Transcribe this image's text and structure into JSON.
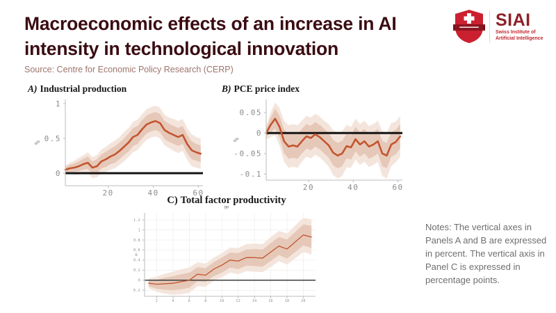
{
  "header": {
    "title": "Macroeconomic effects of an increase in AI intensity in technological innovation",
    "title_color": "#3a0c12",
    "source": "Source: Centre for Economic Policy Research (CERP)",
    "source_color": "#9e746c"
  },
  "logo": {
    "acronym": "SIAI",
    "subtitle_line1": "Swiss Institute of",
    "subtitle_line2": "Artificial Intelligence",
    "shield_color": "#cb2030",
    "banner_color": "#8c1420",
    "acronym_color": "#8e2127",
    "subtitle_color": "#c2272e"
  },
  "notes": {
    "text": "Notes: The vertical axes in Panels A and B are expressed in percent. The vertical axis in Panel C is expressed in percentage points.",
    "color": "#6e6e6e"
  },
  "colors": {
    "line": "#c2552f",
    "band_inner": "#e6c8b8",
    "band_outer": "#f4e5dc",
    "axis": "#bbbbbb",
    "tick_text": "#8c8c8c",
    "grid": "#edeae7"
  },
  "chart_data": [
    {
      "type": "line",
      "prefix": "A)",
      "name": "Industrial production",
      "ylabel": "%",
      "xlim": [
        1,
        62
      ],
      "ylim": [
        -0.18,
        1.06
      ],
      "xticks": [
        20,
        40,
        60
      ],
      "yticks": [
        1,
        0.5,
        0
      ],
      "zero_line": true,
      "x": [
        1,
        3,
        5,
        7,
        9,
        11,
        13,
        15,
        17,
        19,
        21,
        23,
        25,
        27,
        29,
        31,
        33,
        35,
        37,
        39,
        41,
        43,
        45,
        47,
        49,
        51,
        53,
        55,
        57,
        59,
        61
      ],
      "y": [
        0.05,
        0.07,
        0.08,
        0.1,
        0.13,
        0.15,
        0.08,
        0.1,
        0.17,
        0.2,
        0.24,
        0.27,
        0.32,
        0.38,
        0.44,
        0.52,
        0.55,
        0.63,
        0.7,
        0.73,
        0.75,
        0.72,
        0.62,
        0.58,
        0.55,
        0.52,
        0.55,
        0.42,
        0.33,
        0.3,
        0.28
      ],
      "band_inner_halfwidth": [
        0.04,
        0.05,
        0.06,
        0.07,
        0.08,
        0.09,
        0.09,
        0.1,
        0.1,
        0.11,
        0.11,
        0.12,
        0.12,
        0.12,
        0.13,
        0.13,
        0.13,
        0.13,
        0.13,
        0.13,
        0.13,
        0.13,
        0.13,
        0.13,
        0.13,
        0.13,
        0.13,
        0.13,
        0.13,
        0.12,
        0.12
      ],
      "band_outer_halfwidth": [
        0.06,
        0.08,
        0.1,
        0.12,
        0.13,
        0.15,
        0.15,
        0.16,
        0.17,
        0.18,
        0.19,
        0.2,
        0.2,
        0.21,
        0.21,
        0.22,
        0.22,
        0.22,
        0.22,
        0.22,
        0.22,
        0.22,
        0.22,
        0.22,
        0.23,
        0.23,
        0.23,
        0.23,
        0.23,
        0.22,
        0.22
      ]
    },
    {
      "type": "line",
      "prefix": "B)",
      "name": "PCE price index",
      "ylabel": "%",
      "xlim": [
        1,
        62
      ],
      "ylim": [
        -0.115,
        0.082
      ],
      "xticks": [
        20,
        40,
        60
      ],
      "yticks": [
        0.05,
        0,
        -0.05,
        -0.1
      ],
      "zero_line": true,
      "x": [
        1,
        3,
        5,
        7,
        9,
        11,
        13,
        15,
        17,
        19,
        21,
        23,
        25,
        27,
        29,
        31,
        33,
        35,
        37,
        39,
        41,
        43,
        45,
        47,
        49,
        51,
        53,
        55,
        57,
        59,
        61
      ],
      "y": [
        0.0,
        0.02,
        0.035,
        0.015,
        -0.02,
        -0.033,
        -0.03,
        -0.033,
        -0.02,
        -0.008,
        -0.012,
        -0.003,
        -0.01,
        -0.02,
        -0.03,
        -0.048,
        -0.055,
        -0.05,
        -0.032,
        -0.035,
        -0.015,
        -0.028,
        -0.02,
        -0.033,
        -0.028,
        -0.02,
        -0.05,
        -0.055,
        -0.028,
        -0.022,
        -0.008
      ],
      "band_inner_halfwidth": [
        0.01,
        0.018,
        0.024,
        0.027,
        0.029,
        0.03,
        0.03,
        0.03,
        0.03,
        0.03,
        0.03,
        0.03,
        0.03,
        0.03,
        0.03,
        0.031,
        0.031,
        0.031,
        0.03,
        0.03,
        0.03,
        0.03,
        0.03,
        0.03,
        0.03,
        0.03,
        0.031,
        0.031,
        0.03,
        0.03,
        0.03
      ],
      "band_outer_halfwidth": [
        0.016,
        0.03,
        0.04,
        0.046,
        0.05,
        0.052,
        0.052,
        0.052,
        0.05,
        0.05,
        0.05,
        0.05,
        0.05,
        0.05,
        0.052,
        0.055,
        0.056,
        0.055,
        0.052,
        0.05,
        0.05,
        0.05,
        0.05,
        0.05,
        0.05,
        0.05,
        0.055,
        0.056,
        0.052,
        0.05,
        0.05
      ]
    },
    {
      "type": "line",
      "prefix": "C)",
      "name": "Total factor productivity",
      "ylabel": "pp",
      "xlim": [
        0.5,
        21.5
      ],
      "ylim": [
        -0.32,
        1.34
      ],
      "xticks": [
        2,
        4,
        6,
        8,
        10,
        12,
        14,
        16,
        18,
        20
      ],
      "yticks": [
        1.2,
        1,
        0.8,
        0.6,
        0.4,
        0.2,
        0,
        -0.2
      ],
      "zero_line": true,
      "x": [
        1,
        2,
        3,
        4,
        5,
        6,
        7,
        8,
        9,
        10,
        11,
        12,
        13,
        14,
        15,
        16,
        17,
        18,
        19,
        20,
        21
      ],
      "y": [
        -0.06,
        -0.08,
        -0.07,
        -0.06,
        -0.03,
        0.0,
        0.12,
        0.1,
        0.22,
        0.3,
        0.4,
        0.38,
        0.45,
        0.45,
        0.44,
        0.56,
        0.68,
        0.62,
        0.76,
        0.9,
        0.86
      ],
      "band_inner_halfwidth": [
        0.06,
        0.09,
        0.12,
        0.14,
        0.15,
        0.15,
        0.14,
        0.14,
        0.14,
        0.15,
        0.15,
        0.16,
        0.16,
        0.17,
        0.17,
        0.18,
        0.18,
        0.19,
        0.2,
        0.21,
        0.22
      ],
      "band_outer_halfwidth": [
        0.1,
        0.15,
        0.2,
        0.23,
        0.25,
        0.25,
        0.24,
        0.23,
        0.23,
        0.24,
        0.25,
        0.26,
        0.27,
        0.28,
        0.28,
        0.3,
        0.3,
        0.31,
        0.33,
        0.34,
        0.35
      ]
    }
  ]
}
